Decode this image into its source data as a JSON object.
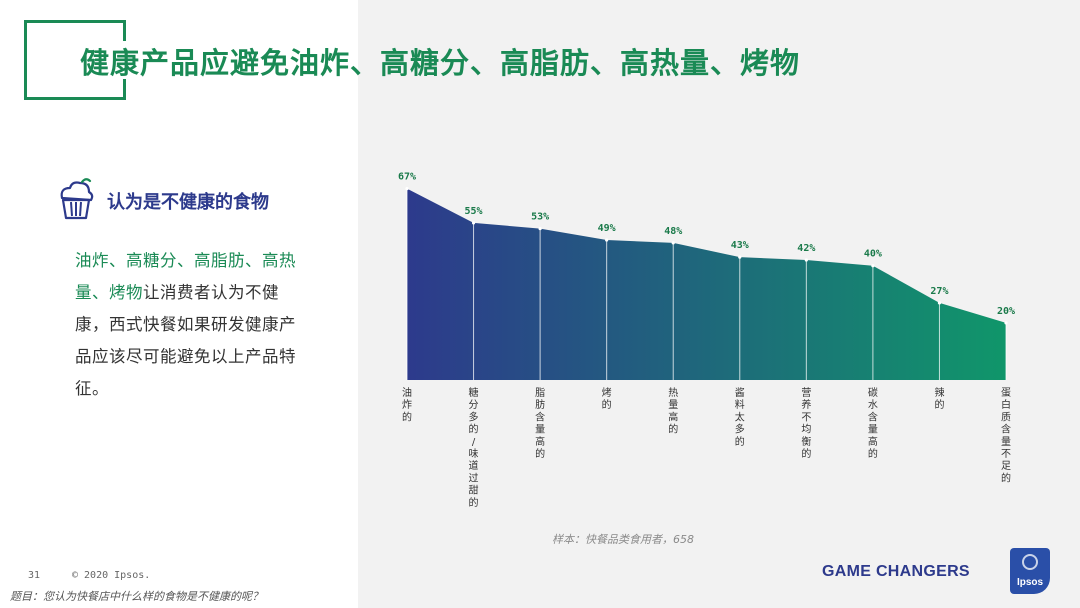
{
  "slide": {
    "title": "健康产品应避免油炸、高糖分、高脂肪、高热量、烤物",
    "subtitle": "认为是不健康的食物",
    "body_highlight": "油炸、高糖分、高脂肪、高热量、烤物",
    "body_rest": "让消费者认为不健康，西式快餐如果研发健康产品应该尽可能避免以上产品特征。",
    "sample_note": "样本：快餐品类食用者，658",
    "page_number": "31",
    "copyright": "© 2020 Ipsos.",
    "question_note": "题目：您认为快餐店中什么样的食物是不健康的呢？",
    "tagline": "GAME CHANGERS",
    "logo_text": "Ipsos"
  },
  "colors": {
    "accent_green": "#1a8a55",
    "accent_blue": "#2d3a8c",
    "gradient_start": "#2d3a8c",
    "gradient_end": "#10966a",
    "label_green": "#1a7a4a"
  },
  "chart_data": {
    "type": "area",
    "categories": [
      "油炸的",
      "糖分多的/味道过甜的",
      "脂肪含量高的",
      "烤的",
      "热量高的",
      "酱料太多的",
      "营养不均衡的",
      "碳水含量高的",
      "辣的",
      "蛋白质含量不足的"
    ],
    "values": [
      67,
      55,
      53,
      49,
      48,
      43,
      42,
      40,
      27,
      20
    ],
    "data_labels": [
      "67%",
      "55%",
      "53%",
      "49%",
      "48%",
      "43%",
      "42%",
      "40%",
      "27%",
      "20%"
    ],
    "ylim": [
      0,
      70
    ],
    "unit": "%",
    "grid": false,
    "legend": "none"
  }
}
